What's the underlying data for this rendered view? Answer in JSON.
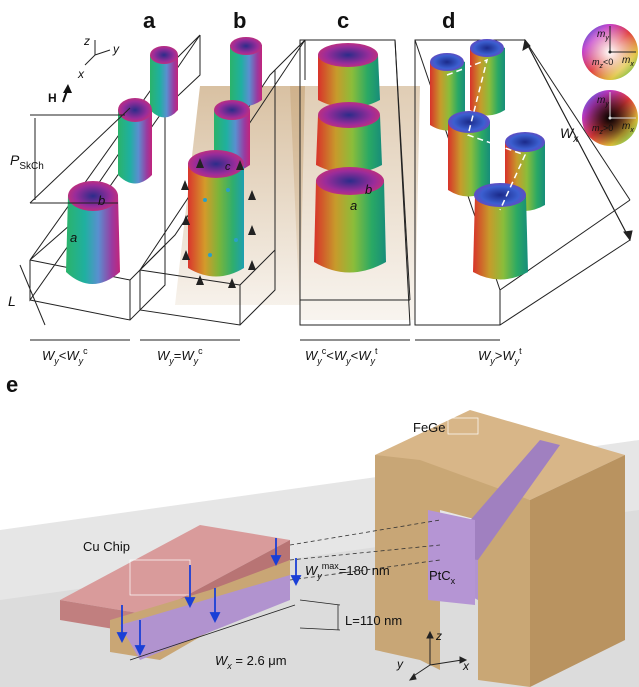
{
  "panels": {
    "a": "a",
    "b": "b",
    "c": "c",
    "d": "d",
    "e": "e"
  },
  "axes_top": {
    "x": "x",
    "y": "y",
    "z": "z"
  },
  "field_label": "H",
  "period_label": {
    "main": "P",
    "sub": "SkCh"
  },
  "length_label": "L",
  "ellipse_axes": {
    "a": "a",
    "b": "b",
    "c": "c"
  },
  "wx_label": {
    "main": "W",
    "sub": "x"
  },
  "conditions": {
    "a": {
      "w": "W",
      "y": "y",
      "op": "<",
      "w2": "W",
      "y2": "y",
      "sup": "c"
    },
    "b": {
      "w": "W",
      "y": "y",
      "op": "=",
      "w2": "W",
      "y2": "y",
      "sup": "c"
    },
    "c": {
      "w1": "W",
      "y1": "y",
      "sup1": "c",
      "op1": "<",
      "w2": "W",
      "y2": "y",
      "op2": "<",
      "w3": "W",
      "y3": "y",
      "sup3": "t"
    },
    "d": {
      "w": "W",
      "y": "y",
      "op": ">",
      "w2": "W",
      "y2": "y",
      "sup": "t"
    }
  },
  "color_wheels": {
    "top": {
      "my": "m",
      "my_sub": "y",
      "mx": "m",
      "mx_sub": "x",
      "mz": "m",
      "mz_sub": "z",
      "cond": "<0"
    },
    "bottom": {
      "my": "m",
      "my_sub": "y",
      "mx": "m",
      "mx_sub": "x",
      "mz": "m",
      "mz_sub": "z",
      "cond": ">0"
    }
  },
  "panel_e": {
    "fege": "FeGe",
    "cu_chip": "Cu Chip",
    "ptc": "PtC",
    "ptc_sub": "x",
    "wy_max": {
      "main": "W",
      "sub": "y",
      "sup": "max",
      "value": "=180 nm"
    },
    "l_value": "L=110 nm",
    "wx_value": {
      "main": "W",
      "sub": "x",
      "value": " = 2.6 μm"
    },
    "axes": {
      "x": "x",
      "y": "y",
      "z": "z"
    }
  },
  "colors": {
    "cu_chip": "#c98484",
    "cu_chip_top": "#d99b9b",
    "fege": "#c9a675",
    "fege_dark": "#a98858",
    "ptc": "#b193cf",
    "floor": "#e4e4e4",
    "shadow": "#c8ad88",
    "arrow_blue": "#1a3fd6"
  }
}
